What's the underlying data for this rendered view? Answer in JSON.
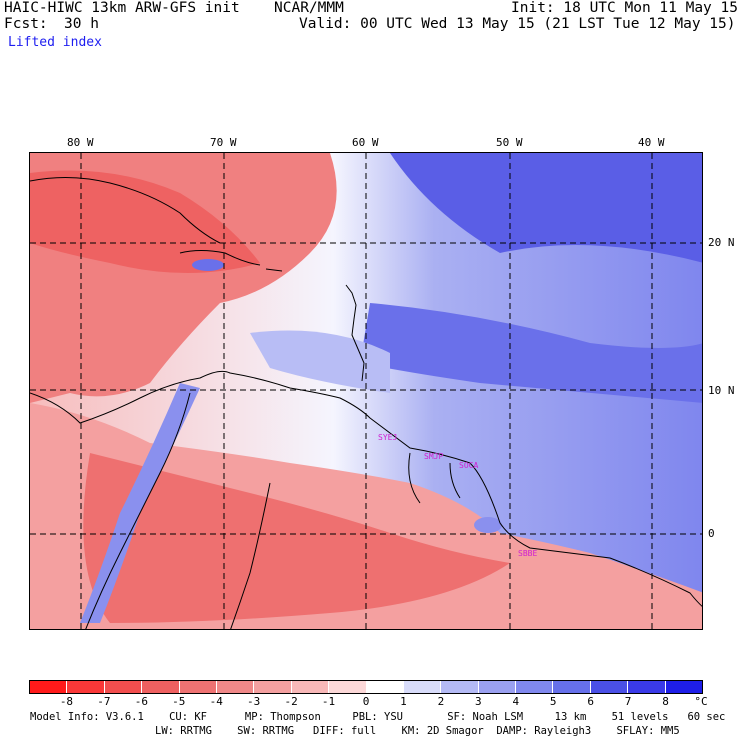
{
  "header": {
    "model": "HAIC-HIWC 13km ARW-GFS init",
    "org": "NCAR/MMM",
    "init": "Init: 18 UTC Mon 11 May 15",
    "fcst_label": "Fcst:",
    "fcst_value": "30 h",
    "valid": "Valid: 00 UTC Wed 13 May 15 (21 LST Tue 12 May 15)"
  },
  "field_name": "Lifted index",
  "map": {
    "lon_labels": [
      "80 W",
      "70 W",
      "60 W",
      "50 W",
      "40 W"
    ],
    "lat_labels": [
      "20 N",
      "10 N",
      "0"
    ],
    "stations": [
      "SYEJ",
      "SMJP",
      "SOCA",
      "SBBE"
    ]
  },
  "colorbar": {
    "labels": [
      "-8",
      "-7",
      "-6",
      "-5",
      "-4",
      "-3",
      "-2",
      "-1",
      "0",
      "1",
      "2",
      "3",
      "4",
      "5",
      "6",
      "7",
      "8"
    ],
    "unit": "°C",
    "colors": [
      "#ff1a1a",
      "#fa3838",
      "#f24e4e",
      "#ee6060",
      "#ee7272",
      "#f08888",
      "#f4a0a0",
      "#f8b8b8",
      "#fcd8d8",
      "#ffffff",
      "#d8dcfa",
      "#b4baf5",
      "#9aa0f0",
      "#8088ee",
      "#6670ea",
      "#4a50e6",
      "#3a3ae8",
      "#1e1ee8"
    ]
  },
  "footer": {
    "line1": "Model Info: V3.6.1    CU: KF      MP: Thompson     PBL: YSU       SF: Noah LSM     13 km    51 levels   60 sec",
    "line2": "LW: RRTMG    SW: RRTMG   DIFF: full    KM: 2D Smagor  DAMP: Rayleigh3    SFLAY: MM5"
  }
}
